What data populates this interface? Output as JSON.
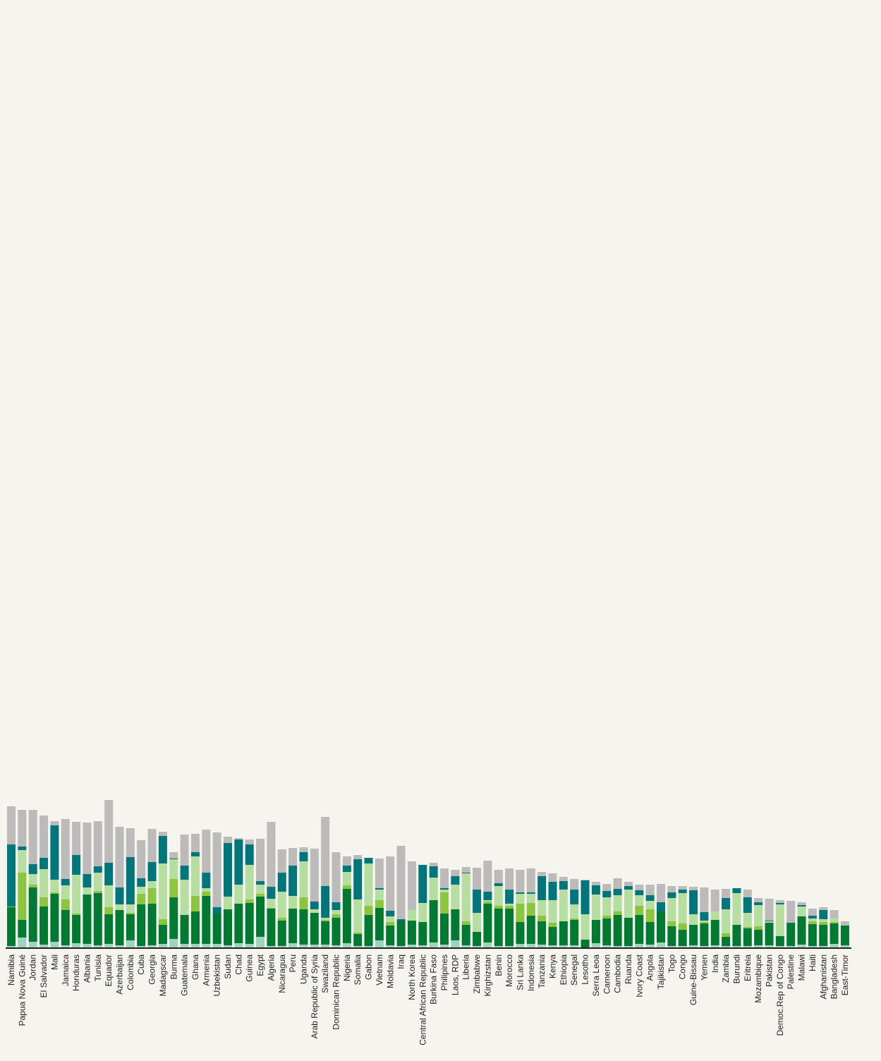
{
  "chart_data": {
    "type": "bar",
    "stacked": true,
    "title": "",
    "xlabel": "",
    "ylabel": "",
    "ylim": [
      0,
      200
    ],
    "grid": false,
    "legend": "none",
    "series_colors": [
      "#9ed3c0",
      "#007a32",
      "#8cc63e",
      "#b7dea1",
      "#00757a",
      "#bdbaba"
    ],
    "categories": [
      "Namibia",
      "Papua Nova Guiné",
      "Jordan",
      "El Salvador",
      "Mali",
      "Jamaica",
      "Honduras",
      "Albania",
      "Tunisia",
      "Equador",
      "Azerbaijan",
      "Colombia",
      "Cuba",
      "Georgia",
      "Madagscar",
      "Burma",
      "Guatemala",
      "Ghana",
      "Armenia",
      "Uzbekistan",
      "Sudan",
      "Chad",
      "Guinea",
      "Egypt",
      "Algeria",
      "Nicaragua",
      "Peru",
      "Uganda",
      "Arab Republic of Syria",
      "Swaziland",
      "Dominican Republic",
      "Nigeria",
      "Somalia",
      "Gabon",
      "Vietnam",
      "Moldavia",
      "Iraq",
      "North Korea",
      "Central African Republic",
      "Burkina Faso",
      "Philipines",
      "Laos, RDP",
      "Liberia",
      "Zimbabwe",
      "Kirghizstan",
      "Benin",
      "Morocco",
      "Sri Lanka",
      "Indonesia",
      "Tanzania",
      "Kenya",
      "Ethiopia",
      "Senegal",
      "Lesotho",
      "Serra Leoa",
      "Cameroon",
      "Cambodia",
      "Ruanda",
      "Ivory Coast",
      "Angola",
      "Tajikistan",
      "Togo",
      "Congo",
      "Guine-Bissau",
      "Yemen",
      "India",
      "Zambia",
      "Burundi",
      "Eritreia",
      "Mozambique",
      "Pakistan",
      "Democ.Rep of Congo",
      "Palestine",
      "Malawi",
      "Haiti",
      "Afghanistan",
      "Bangladesh",
      "East-Timor"
    ],
    "series": [
      {
        "values": [
          2,
          14,
          8,
          4,
          8,
          3,
          6,
          5,
          3,
          5,
          3,
          10,
          2,
          3,
          5,
          12,
          5,
          5,
          5,
          5,
          3,
          6,
          5,
          15,
          2,
          2,
          6,
          4,
          4,
          4,
          3,
          6,
          2,
          2,
          10,
          3,
          2,
          4,
          3,
          7,
          4,
          10,
          3,
          2,
          7,
          2,
          2,
          5,
          5,
          4,
          3,
          3,
          3,
          0,
          6,
          3,
          2,
          2,
          5,
          4,
          7,
          2,
          2,
          3,
          2,
          3,
          2,
          2,
          2,
          3,
          3,
          2,
          2,
          4,
          2,
          2,
          5,
          3
        ]
      },
      {
        "values": [
          55,
          25,
          77,
          54,
          68,
          50,
          40,
          70,
          74,
          42,
          50,
          37,
          59,
          59,
          27,
          59,
          41,
          46,
          68,
          43,
          51,
          56,
          58,
          57,
          53,
          36,
          49,
          50,
          45,
          33,
          39,
          77,
          17,
          44,
          46,
          28,
          36,
          34,
          33,
          60,
          44,
          44,
          29,
          20,
          55,
          53,
          53,
          31,
          40,
          33,
          26,
          34,
          36,
          11,
          33,
          38,
          44,
          40,
          41,
          32,
          44,
          28,
          23,
          29,
          32,
          36,
          13,
          30,
          25,
          22,
          32,
          14,
          31,
          40,
          31,
          30,
          29,
          28
        ]
      },
      {
        "values": [
          1,
          67,
          4,
          13,
          2,
          15,
          2,
          0,
          3,
          10,
          0,
          2,
          15,
          22,
          8,
          26,
          0,
          22,
          6,
          0,
          0,
          0,
          5,
          4,
          1,
          4,
          0,
          17,
          0,
          2,
          5,
          5,
          2,
          13,
          11,
          5,
          0,
          0,
          0,
          0,
          30,
          0,
          5,
          0,
          3,
          4,
          4,
          26,
          18,
          8,
          6,
          0,
          2,
          0,
          0,
          4,
          5,
          0,
          13,
          18,
          0,
          7,
          9,
          0,
          2,
          0,
          5,
          0,
          2,
          5,
          0,
          0,
          0,
          0,
          4,
          4,
          2,
          0
        ]
      },
      {
        "values": [
          0,
          32,
          15,
          40,
          18,
          20,
          55,
          10,
          26,
          31,
          8,
          12,
          10,
          10,
          79,
          28,
          50,
          56,
          5,
          0,
          18,
          27,
          49,
          13,
          13,
          37,
          18,
          51,
          5,
          3,
          6,
          19,
          47,
          60,
          15,
          8,
          0,
          15,
          27,
          32,
          4,
          35,
          68,
          27,
          2,
          28,
          3,
          14,
          13,
          22,
          32,
          45,
          20,
          36,
          36,
          26,
          23,
          40,
          15,
          12,
          0,
          33,
          43,
          15,
          2,
          12,
          34,
          45,
          20,
          30,
          2,
          45,
          0,
          14,
          4,
          4,
          5,
          0
        ]
      },
      {
        "values": [
          88,
          5,
          14,
          16,
          77,
          9,
          28,
          19,
          9,
          32,
          24,
          67,
          12,
          27,
          39,
          1,
          20,
          6,
          22,
          9,
          76,
          64,
          29,
          5,
          17,
          27,
          43,
          13,
          11,
          45,
          11,
          9,
          57,
          8,
          2,
          8,
          2,
          0,
          54,
          16,
          2,
          12,
          1,
          33,
          12,
          4,
          20,
          2,
          2,
          34,
          26,
          12,
          21,
          48,
          13,
          9,
          9,
          5,
          7,
          8,
          13,
          8,
          5,
          34,
          12,
          0,
          16,
          7,
          22,
          4,
          1,
          2,
          2,
          2,
          4,
          13,
          0,
          0
        ]
      },
      {
        "values": [
          54,
          52,
          77,
          60,
          6,
          85,
          47,
          73,
          64,
          89,
          86,
          41,
          54,
          47,
          6,
          9,
          44,
          26,
          61,
          106,
          9,
          2,
          7,
          60,
          92,
          33,
          25,
          7,
          75,
          98,
          71,
          13,
          6,
          0,
          42,
          77,
          104,
          69,
          0,
          5,
          28,
          9,
          8,
          31,
          44,
          19,
          30,
          32,
          34,
          6,
          12,
          6,
          15,
          1,
          5,
          10,
          15,
          6,
          8,
          15,
          26,
          9,
          5,
          5,
          35,
          31,
          13,
          0,
          11,
          6,
          31,
          4,
          31,
          4,
          10,
          4,
          12,
          6
        ]
      }
    ]
  }
}
